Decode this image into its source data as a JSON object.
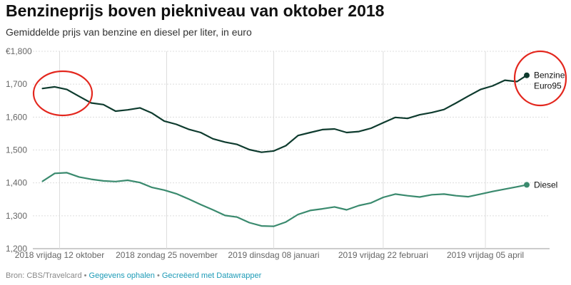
{
  "title": "Benzineprijs boven piekniveau van oktober 2018",
  "subtitle": "Gemiddelde prijs van benzine en diesel per liter, in euro",
  "footer": {
    "source": "Bron: CBS/Travelcard",
    "sep1": " • ",
    "get_data": "Gegevens ophalen",
    "sep2": " • ",
    "created_with": "Gecreëerd met Datawrapper"
  },
  "colors": {
    "benzine": "#0e3b2e",
    "diesel": "#3a8a6e",
    "annotation": "#e3271e",
    "grid": "#dddddd"
  },
  "chart_data": {
    "type": "line",
    "title": "Benzineprijs boven piekniveau van oktober 2018",
    "subtitle": "Gemiddelde prijs van benzine en diesel per liter, in euro",
    "xlabel": "",
    "ylabel": "",
    "ylim": [
      1.2,
      1.8
    ],
    "yticks": [
      1.2,
      1.3,
      1.4,
      1.5,
      1.6,
      1.7,
      1.8
    ],
    "ytick_labels": [
      "1,200",
      "1,300",
      "1,400",
      "1,500",
      "1,600",
      "1,700",
      "€1,800"
    ],
    "xlim": [
      "2018-10-01",
      "2019-04-22"
    ],
    "xticks": [
      "2018-10-12",
      "2018-11-25",
      "2019-01-08",
      "2019-02-22",
      "2019-04-05"
    ],
    "xtick_labels": [
      "2018 vrijdag 12 oktober",
      "2018 zondag 25 november",
      "2019 dinsdag 08 januari",
      "2019 vrijdag 22 februari",
      "2019 vrijdag 05 april"
    ],
    "grid": true,
    "legend": "direct labels at line ends",
    "x": [
      "2018-10-05",
      "2018-10-10",
      "2018-10-15",
      "2018-10-20",
      "2018-10-25",
      "2018-10-30",
      "2018-11-04",
      "2018-11-09",
      "2018-11-14",
      "2018-11-19",
      "2018-11-24",
      "2018-11-29",
      "2018-12-04",
      "2018-12-09",
      "2018-12-14",
      "2018-12-19",
      "2018-12-24",
      "2018-12-29",
      "2019-01-03",
      "2019-01-08",
      "2019-01-13",
      "2019-01-18",
      "2019-01-23",
      "2019-01-28",
      "2019-02-02",
      "2019-02-07",
      "2019-02-12",
      "2019-02-17",
      "2019-02-22",
      "2019-02-27",
      "2019-03-04",
      "2019-03-09",
      "2019-03-14",
      "2019-03-19",
      "2019-03-24",
      "2019-03-29",
      "2019-04-03",
      "2019-04-08",
      "2019-04-13",
      "2019-04-18",
      "2019-04-22"
    ],
    "series": [
      {
        "name": "Benzine Euro95",
        "values": [
          1.687,
          1.692,
          1.684,
          1.663,
          1.643,
          1.638,
          1.618,
          1.622,
          1.628,
          1.612,
          1.588,
          1.578,
          1.563,
          1.553,
          1.534,
          1.524,
          1.517,
          1.501,
          1.493,
          1.497,
          1.513,
          1.544,
          1.553,
          1.562,
          1.564,
          1.553,
          1.556,
          1.566,
          1.583,
          1.599,
          1.596,
          1.607,
          1.614,
          1.623,
          1.643,
          1.664,
          1.684,
          1.695,
          1.712,
          1.708,
          1.727
        ]
      },
      {
        "name": "Diesel",
        "values": [
          1.405,
          1.429,
          1.431,
          1.418,
          1.411,
          1.406,
          1.404,
          1.408,
          1.401,
          1.386,
          1.378,
          1.367,
          1.351,
          1.334,
          1.318,
          1.301,
          1.296,
          1.279,
          1.269,
          1.268,
          1.281,
          1.304,
          1.316,
          1.321,
          1.327,
          1.318,
          1.331,
          1.339,
          1.356,
          1.366,
          1.361,
          1.357,
          1.364,
          1.366,
          1.361,
          1.358,
          1.366,
          1.374,
          1.381,
          1.388,
          1.394
        ]
      }
    ]
  }
}
